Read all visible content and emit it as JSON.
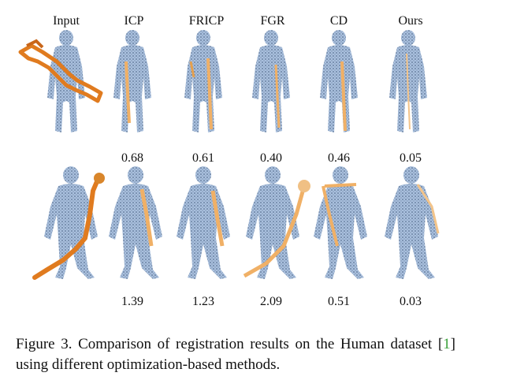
{
  "columns": [
    "Input",
    "ICP",
    "FRICP",
    "FGR",
    "CD",
    "Ours"
  ],
  "rows": [
    {
      "scores": [
        "",
        "0.68",
        "0.61",
        "0.40",
        "0.46",
        "0.05"
      ]
    },
    {
      "scores": [
        "",
        "1.39",
        "1.23",
        "2.09",
        "0.51",
        "0.03"
      ]
    }
  ],
  "caption": {
    "prefix": "Figure 3. Comparison of registration results on the Human dataset [",
    "cite": "1",
    "suffix": "] using different optimization-based methods."
  },
  "colors": {
    "target": "#9fb8d8",
    "target_dot": "#5a6f8c",
    "source": "#e07b1f",
    "source_light": "#f0b066"
  }
}
